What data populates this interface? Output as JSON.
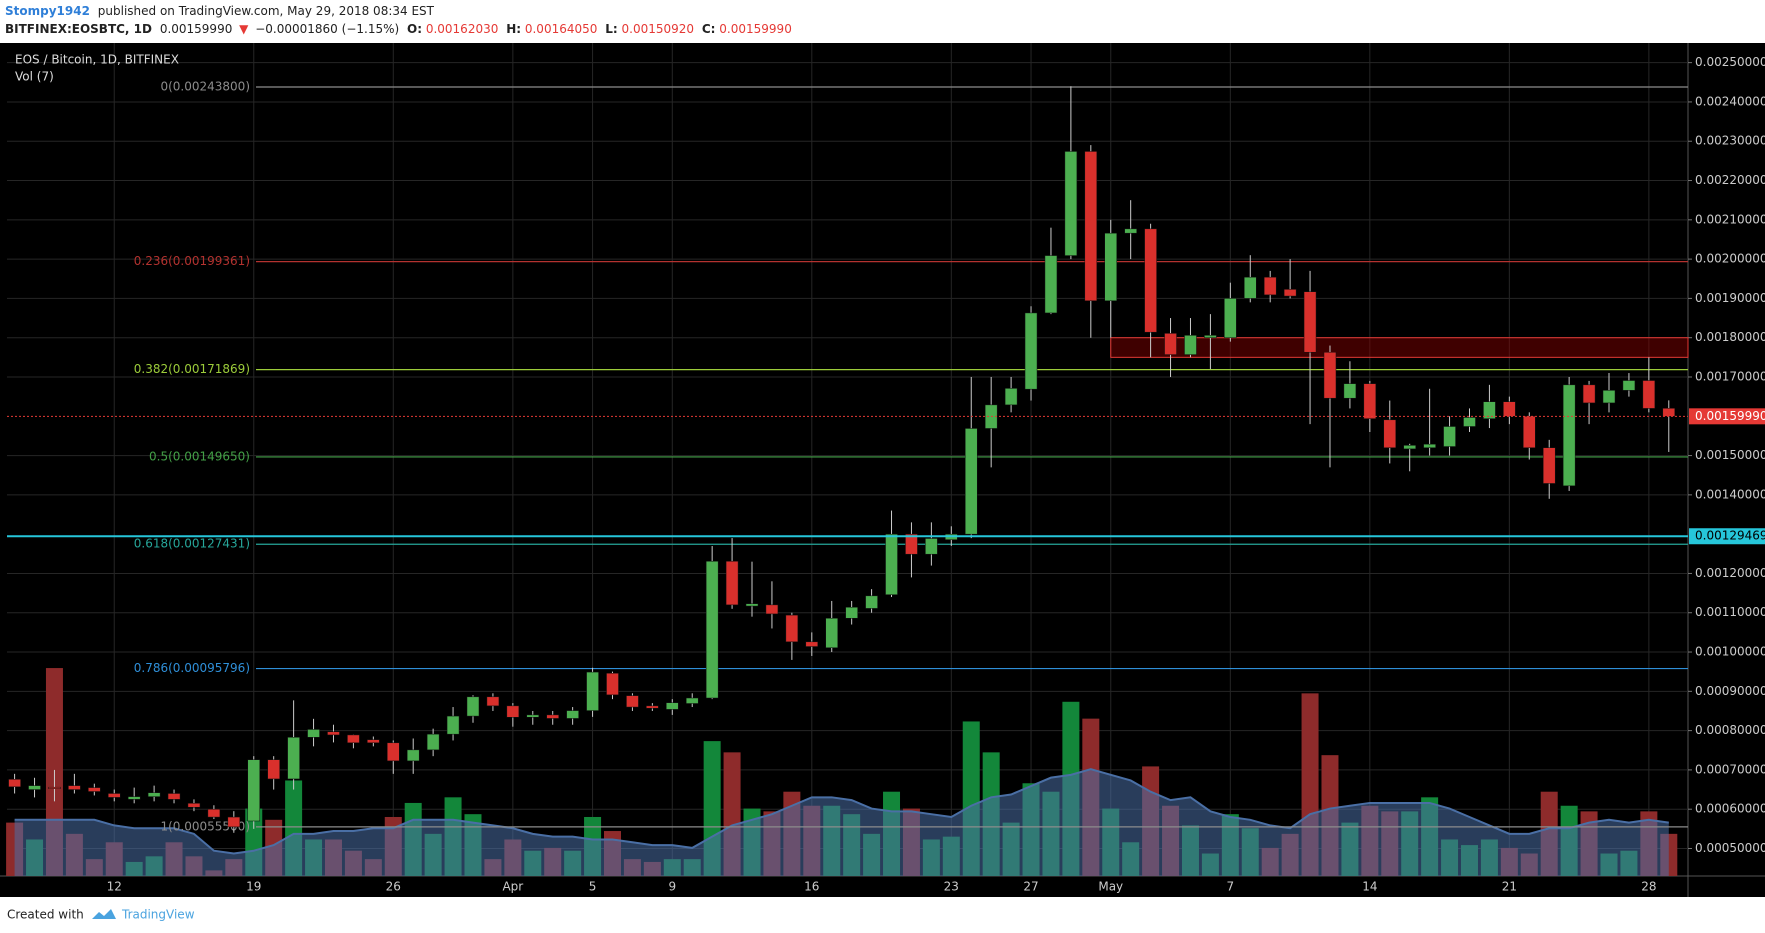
{
  "header": {
    "author": "Stompy1942",
    "published": "published on TradingView.com, May 29, 2018 08:34 EST",
    "symbol": "BITFINEX:EOSBTC, 1D",
    "last": "0.00159990",
    "arrow": "▼",
    "change": "−0.00001860 (−1.15%)",
    "o_label": "O:",
    "o": "0.00162030",
    "h_label": "H:",
    "h": "0.00164050",
    "l_label": "L:",
    "l": "0.00150920",
    "c_label": "C:",
    "c": "0.00159990"
  },
  "footer": {
    "created": "Created with",
    "brand": "TradingView"
  },
  "chart_data": {
    "type": "candlestick",
    "title": "EOS / Bitcoin, 1D, BITFINEX",
    "volume_label": "Vol (7)",
    "categories": [
      null,
      null,
      null,
      null,
      null,
      "12",
      null,
      null,
      null,
      null,
      null,
      null,
      "19",
      null,
      null,
      null,
      null,
      null,
      null,
      "26",
      null,
      null,
      null,
      null,
      null,
      "Apr",
      null,
      null,
      null,
      "5",
      null,
      null,
      null,
      "9",
      null,
      null,
      null,
      null,
      null,
      null,
      "16",
      null,
      null,
      null,
      null,
      null,
      null,
      "23",
      null,
      null,
      null,
      "27",
      null,
      null,
      null,
      "May",
      null,
      null,
      null,
      null,
      null,
      "7",
      null,
      null,
      null,
      null,
      null,
      null,
      "14",
      null,
      null,
      null,
      null,
      null,
      null,
      "21",
      null,
      null,
      null,
      null,
      null,
      null,
      "28",
      null
    ],
    "open": [
      0.000676,
      0.00065,
      0.000656,
      0.00066,
      0.000655,
      0.00064,
      0.000625,
      0.000632,
      0.00064,
      0.000615,
      0.0006,
      0.00058,
      0.00057,
      0.000726,
      0.000677,
      0.000783,
      0.000797,
      0.000789,
      0.000777,
      0.000769,
      0.000723,
      0.000751,
      0.000791,
      0.000837,
      0.000886,
      0.000863,
      0.000834,
      0.00084,
      0.000831,
      0.000851,
      0.000946,
      0.000889,
      0.000863,
      0.000854,
      0.000869,
      0.000883,
      0.001231,
      0.001117,
      0.00112,
      0.001094,
      0.001026,
      0.001011,
      0.001086,
      0.001111,
      0.001146,
      0.0013,
      0.001249,
      0.001286,
      0.0013,
      0.001569,
      0.001629,
      0.001669,
      0.001863,
      0.002009,
      0.002274,
      0.001894,
      0.002066,
      0.002077,
      0.001811,
      0.001757,
      0.0018,
      0.0018,
      0.0019,
      0.001954,
      0.001923,
      0.001917,
      0.001763,
      0.001646,
      0.001683,
      0.001591,
      0.001517,
      0.00152,
      0.001523,
      0.001574,
      0.001594,
      0.001637,
      0.0016,
      0.00152,
      0.001423,
      0.00168,
      0.001634,
      0.001666,
      0.001691,
      0.0016203
    ],
    "high": [
      0.00069,
      0.00068,
      0.0007,
      0.00069,
      0.000665,
      0.00065,
      0.000655,
      0.00066,
      0.00065,
      0.000625,
      0.00061,
      0.000595,
      0.000735,
      0.000735,
      0.000877,
      0.00083,
      0.000815,
      0.00079,
      0.000785,
      0.000775,
      0.00078,
      0.000805,
      0.00086,
      0.00089,
      0.000895,
      0.00087,
      0.00085,
      0.00085,
      0.00086,
      0.00096,
      0.00095,
      0.000895,
      0.00087,
      0.00088,
      0.000895,
      0.00127,
      0.00129,
      0.00123,
      0.00118,
      0.0011,
      0.00105,
      0.00113,
      0.00113,
      0.00116,
      0.00136,
      0.00133,
      0.00133,
      0.00132,
      0.0017,
      0.0017,
      0.0017,
      0.00188,
      0.00208,
      0.00244,
      0.00229,
      0.0021,
      0.00215,
      0.00209,
      0.00185,
      0.00185,
      0.00186,
      0.00194,
      0.00201,
      0.00197,
      0.002,
      0.00197,
      0.00178,
      0.00174,
      0.00169,
      0.00164,
      0.00153,
      0.00167,
      0.0016,
      0.00162,
      0.00168,
      0.00165,
      0.00161,
      0.00154,
      0.0017,
      0.00169,
      0.00171,
      0.00171,
      0.00175,
      0.0016405
    ],
    "low": [
      0.00064,
      0.00063,
      0.00062,
      0.00064,
      0.000635,
      0.00062,
      0.000615,
      0.00062,
      0.000615,
      0.000595,
      0.000575,
      0.00054,
      0.00055,
      0.00065,
      0.00065,
      0.00076,
      0.00077,
      0.000755,
      0.00076,
      0.00069,
      0.00069,
      0.000735,
      0.000775,
      0.00082,
      0.00085,
      0.00081,
      0.000815,
      0.000815,
      0.000815,
      0.000835,
      0.00088,
      0.00085,
      0.00085,
      0.00084,
      0.00086,
      0.00088,
      0.00111,
      0.00109,
      0.00106,
      0.00098,
      0.00099,
      0.001,
      0.00107,
      0.0011,
      0.00114,
      0.00119,
      0.00122,
      0.00127,
      0.00129,
      0.00147,
      0.00161,
      0.00164,
      0.00186,
      0.002,
      0.0018,
      0.0018,
      0.002,
      0.00175,
      0.0017,
      0.00175,
      0.00172,
      0.00179,
      0.00189,
      0.00189,
      0.0019,
      0.00158,
      0.00147,
      0.00162,
      0.00156,
      0.00148,
      0.00146,
      0.0015,
      0.0015,
      0.00156,
      0.00157,
      0.00158,
      0.00149,
      0.00139,
      0.00141,
      0.00158,
      0.00161,
      0.00165,
      0.00161,
      0.0015092
    ],
    "close": [
      0.000657,
      0.00066,
      0.000654,
      0.00065,
      0.000645,
      0.00063,
      0.000632,
      0.000642,
      0.000625,
      0.000605,
      0.00058,
      0.000555,
      0.000726,
      0.000677,
      0.000783,
      0.000803,
      0.000789,
      0.000769,
      0.000769,
      0.000723,
      0.000751,
      0.000791,
      0.000837,
      0.000886,
      0.000863,
      0.000834,
      0.00084,
      0.000831,
      0.000851,
      0.000949,
      0.000891,
      0.00086,
      0.000857,
      0.000871,
      0.000883,
      0.001231,
      0.00112,
      0.001123,
      0.001097,
      0.001026,
      0.001014,
      0.001086,
      0.001114,
      0.001143,
      0.0013,
      0.001249,
      0.001289,
      0.0013,
      0.001569,
      0.001629,
      0.001671,
      0.001863,
      0.002009,
      0.002274,
      0.001894,
      0.002066,
      0.002077,
      0.001814,
      0.001757,
      0.001806,
      0.001806,
      0.0019,
      0.001954,
      0.001909,
      0.001906,
      0.001763,
      0.001646,
      0.001683,
      0.001594,
      0.00152,
      0.001526,
      0.001529,
      0.001574,
      0.001597,
      0.001637,
      0.0016,
      0.00152,
      0.001429,
      0.00168,
      0.001634,
      0.001666,
      0.001691,
      0.00162,
      0.0015999
    ],
    "volume": [
      19,
      13,
      74,
      15,
      6,
      12,
      5,
      7,
      12,
      7,
      2,
      6,
      24,
      20,
      34,
      13,
      13,
      9,
      6,
      21,
      26,
      15,
      28,
      22,
      6,
      13,
      9,
      10,
      9,
      21,
      16,
      6,
      5,
      6,
      6,
      48,
      44,
      24,
      23,
      30,
      25,
      25,
      22,
      15,
      30,
      24,
      13,
      14,
      55,
      44,
      19,
      33,
      30,
      62,
      56,
      24,
      12,
      39,
      25,
      18,
      8,
      22,
      17,
      10,
      15,
      65,
      43,
      19,
      25,
      23,
      23,
      28,
      13,
      11,
      13,
      10,
      8,
      30,
      25,
      23,
      8,
      9,
      23,
      15
    ],
    "volume_ma": [
      20,
      20,
      20,
      20,
      20,
      18,
      17,
      17,
      17,
      15,
      9,
      8,
      9,
      11,
      15,
      15,
      16,
      16,
      17,
      17,
      20,
      20,
      20,
      19,
      18,
      17,
      15,
      14,
      14,
      13,
      13,
      12,
      11,
      11,
      10,
      14,
      18,
      20,
      22,
      25,
      28,
      28,
      27,
      24,
      23,
      23,
      22,
      21,
      25,
      28,
      29,
      32,
      35,
      36,
      38,
      36,
      34,
      30,
      27,
      28,
      23,
      21,
      20,
      18,
      17,
      22,
      24,
      25,
      26,
      26,
      26,
      26,
      24,
      21,
      18,
      15,
      15,
      17,
      17,
      19,
      20,
      19,
      20,
      19
    ],
    "vlim": [
      0,
      100
    ],
    "ylim": [
      0.00043,
      0.00255
    ],
    "yticks": [
      {
        "value": 0.0025,
        "label": "0.00250000"
      },
      {
        "value": 0.0024,
        "label": "0.00240000"
      },
      {
        "value": 0.0023,
        "label": "0.00230000"
      },
      {
        "value": 0.0022,
        "label": "0.00220000"
      },
      {
        "value": 0.0021,
        "label": "0.00210000"
      },
      {
        "value": 0.002,
        "label": "0.00200000"
      },
      {
        "value": 0.0019,
        "label": "0.00190000"
      },
      {
        "value": 0.0018,
        "label": "0.00180000"
      },
      {
        "value": 0.0017,
        "label": "0.00170000"
      },
      {
        "value": 0.0015,
        "label": "0.00150000"
      },
      {
        "value": 0.0014,
        "label": "0.00140000"
      },
      {
        "value": 0.0012,
        "label": "0.00120000"
      },
      {
        "value": 0.0011,
        "label": "0.00110000"
      },
      {
        "value": 0.001,
        "label": "0.00100000"
      },
      {
        "value": 0.0009,
        "label": "0.00090000"
      },
      {
        "value": 0.0008,
        "label": "0.00080000"
      },
      {
        "value": 0.0007,
        "label": "0.00070000"
      },
      {
        "value": 0.0006,
        "label": "0.00060000"
      },
      {
        "value": 0.0005,
        "label": "0.00050000"
      }
    ],
    "fib": [
      {
        "label": "0(0.00243800)",
        "value": 0.002438,
        "color": "#8c8c8c"
      },
      {
        "label": "0.236(0.00199361)",
        "value": 0.00199361,
        "color": "#b3322f"
      },
      {
        "label": "0.382(0.00171869)",
        "value": 0.00171869,
        "color": "#9ccc3a"
      },
      {
        "label": "0.5(0.00149650)",
        "value": 0.0014965,
        "color": "#43a047"
      },
      {
        "label": "0.618(0.00127431)",
        "value": 0.00127431,
        "color": "#26a69a"
      },
      {
        "label": "0.786(0.00095796)",
        "value": 0.00095796,
        "color": "#2f8fd8"
      },
      {
        "label": "1(0.00055500)",
        "value": 0.000555,
        "color": "#8c8c8c"
      }
    ],
    "zone": [
      0.00175,
      0.0018
    ],
    "price_badges": [
      {
        "value": 0.0015999,
        "label": "0.00159990",
        "color": "#e53935"
      },
      {
        "value": 0.00129469,
        "label": "0.00129469",
        "color": "#26c6da"
      }
    ],
    "up_color": "#4caf50",
    "down_color": "#d9302c",
    "volume_up_color": "#13873a",
    "volume_down_color": "#8e2b2b",
    "volume_ma_color": "#4a6fa5",
    "grid": true
  }
}
